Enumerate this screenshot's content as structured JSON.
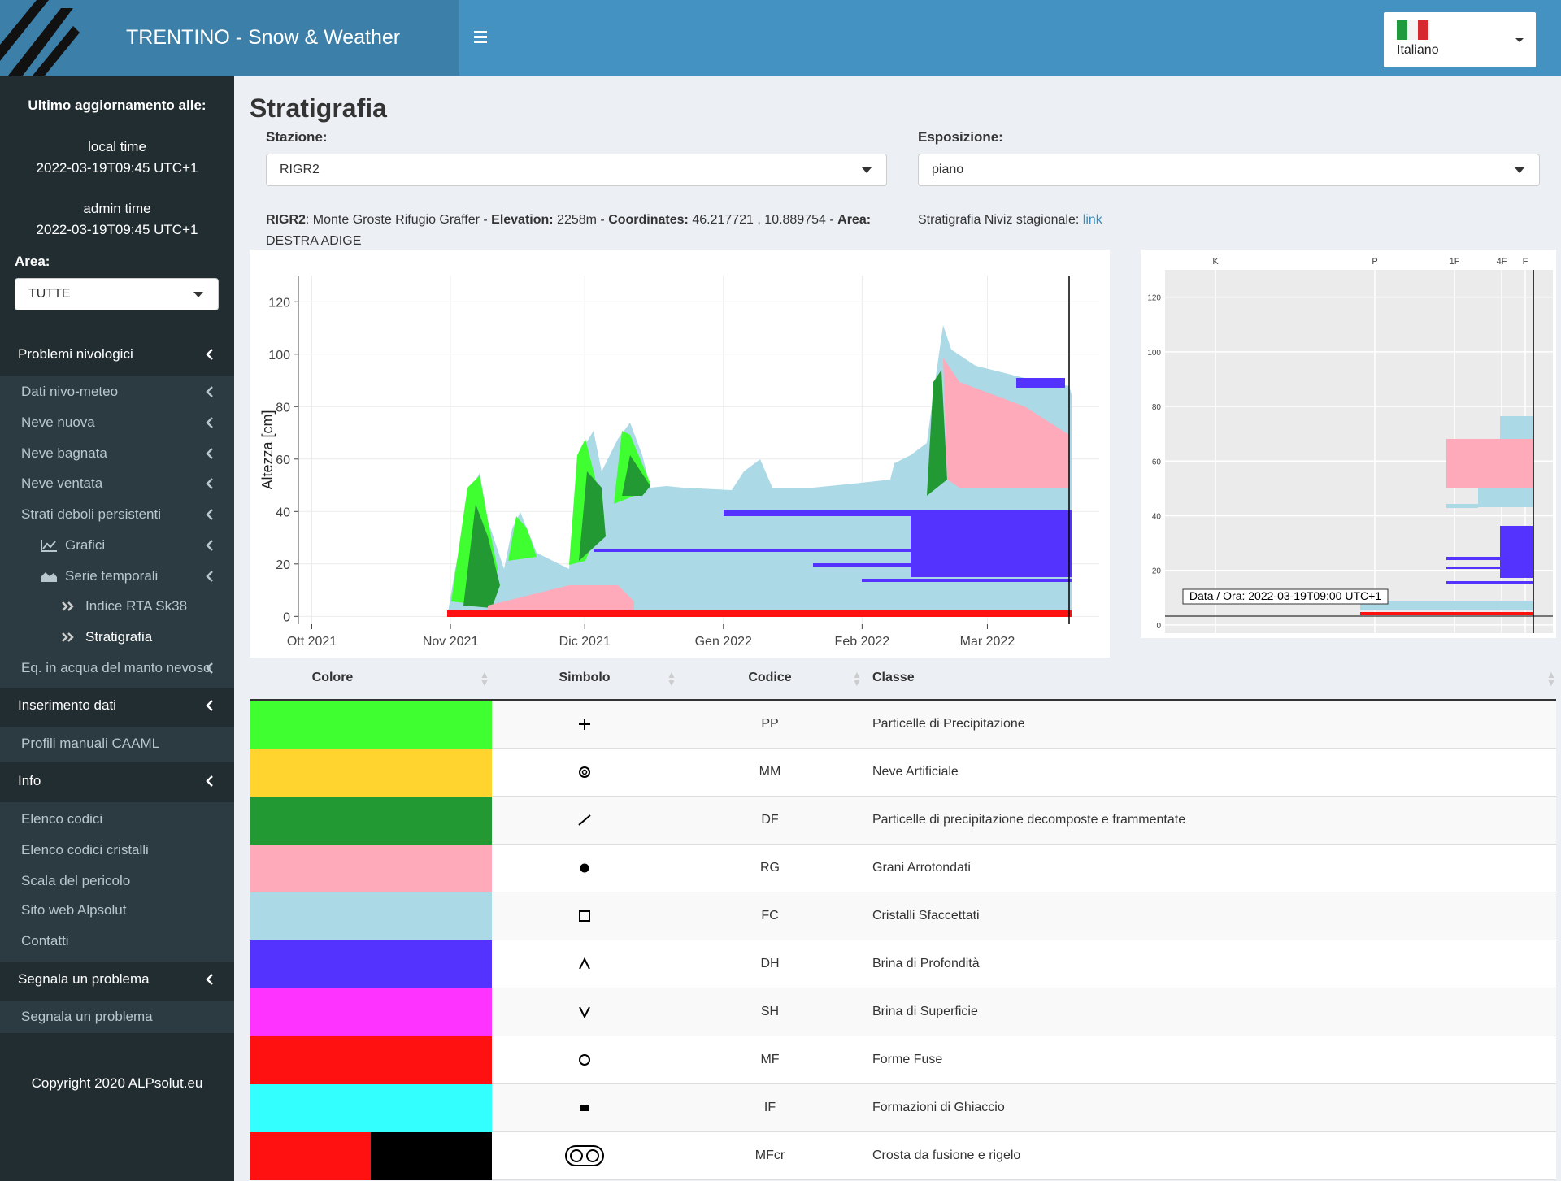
{
  "header": {
    "title": "TRENTINO - Snow & Weather",
    "language": "Italiano"
  },
  "sidebar": {
    "update_label": "Ultimo aggiornamento alle:",
    "local_time_label": "local time",
    "local_time": "2022-03-19T09:45 UTC+1",
    "admin_time_label": "admin time",
    "admin_time": "2022-03-19T09:45 UTC+1",
    "area_label": "Area:",
    "area_value": "TUTTE",
    "menu": [
      "Problemi nivologici",
      "Dati nivo-meteo",
      "Neve nuova",
      "Neve bagnata",
      "Neve ventata",
      "Strati deboli persistenti",
      "Grafici",
      "Serie temporali",
      "Indice RTA Sk38",
      "Stratigrafia",
      "Eq. in acqua del manto nevoso",
      "Inserimento dati",
      "Profili manuali CAAML",
      "Info",
      "Elenco codici",
      "Elenco codici cristalli",
      "Scala del pericolo",
      "Sito web Alpsolut",
      "Contatti",
      "Segnala un problema",
      "Segnala un problema"
    ],
    "copyright": "Copyright 2020 ALPsolut.eu"
  },
  "page": {
    "title": "Stratigrafia",
    "station_label": "Stazione:",
    "station_value": "RIGR2",
    "exposure_label": "Esposizione:",
    "exposure_value": "piano",
    "info": {
      "code": "RIGR2",
      "name": ": Monte Groste Rifugio Graffer - ",
      "elevation_label": "Elevation:",
      "elevation": " 2258m - ",
      "coordinates_label": "Coordinates:",
      "coordinates": " 46.217721 , 10.889754 - ",
      "area_label": "Area:",
      "area": "DESTRA ADIGE"
    },
    "niviz_label": "Stratigrafia Niviz stagionale:",
    "niviz_link": "link"
  },
  "chart_data": {
    "type": "area",
    "ylabel": "Altezza [cm]",
    "xlim": [
      "2021-09-28",
      "2022-03-26"
    ],
    "xticks": [
      {
        "value": "2021-10-01",
        "label": "Ott 2021"
      },
      {
        "value": "2021-11-01",
        "label": "Nov 2021"
      },
      {
        "value": "2021-12-01",
        "label": "Dic 2021"
      },
      {
        "value": "2022-01-01",
        "label": "Gen 2022"
      },
      {
        "value": "2022-02-01",
        "label": "Feb 2022"
      },
      {
        "value": "2022-03-01",
        "label": "Mar 2022"
      }
    ],
    "ylim": [
      -3,
      130
    ],
    "yticks": [
      0,
      20,
      40,
      60,
      80,
      100,
      120
    ],
    "grid": true
  },
  "profile": {
    "ylim": [
      -3,
      130
    ],
    "yticks": [
      0,
      20,
      40,
      60,
      80,
      100,
      120
    ],
    "hardness_ticks": [
      "K",
      "P",
      "1F",
      "4F",
      "F"
    ],
    "tooltip": "Data / Ora: 2022-03-19T09:00 UTC+1"
  },
  "table": {
    "columns": [
      "Colore",
      "Simbolo",
      "Codice",
      "Classe"
    ],
    "rows": [
      {
        "colors": [
          "#3fff30"
        ],
        "code": "PP",
        "class": "Particelle di Precipitazione"
      },
      {
        "colors": [
          "#ffd42e"
        ],
        "code": "MM",
        "class": "Neve Artificiale"
      },
      {
        "colors": [
          "#229933"
        ],
        "code": "DF",
        "class": "Particelle di precipitazione decomposte e frammentate"
      },
      {
        "colors": [
          "#ffaabb"
        ],
        "code": "RG",
        "class": "Grani Arrotondati"
      },
      {
        "colors": [
          "#acd9e6"
        ],
        "code": "FC",
        "class": "Cristalli Sfaccettati"
      },
      {
        "colors": [
          "#5533ff"
        ],
        "code": "DH",
        "class": "Brina di Profondità"
      },
      {
        "colors": [
          "#ff33ff"
        ],
        "code": "SH",
        "class": "Brina di Superficie"
      },
      {
        "colors": [
          "#ff1111"
        ],
        "code": "MF",
        "class": "Forme Fuse"
      },
      {
        "colors": [
          "#33ffff"
        ],
        "code": "IF",
        "class": "Formazioni di Ghiaccio"
      },
      {
        "colors": [
          "#ff1111",
          "#000000"
        ],
        "code": "MFcr",
        "class": "Crosta da fusione e rigelo"
      }
    ]
  }
}
